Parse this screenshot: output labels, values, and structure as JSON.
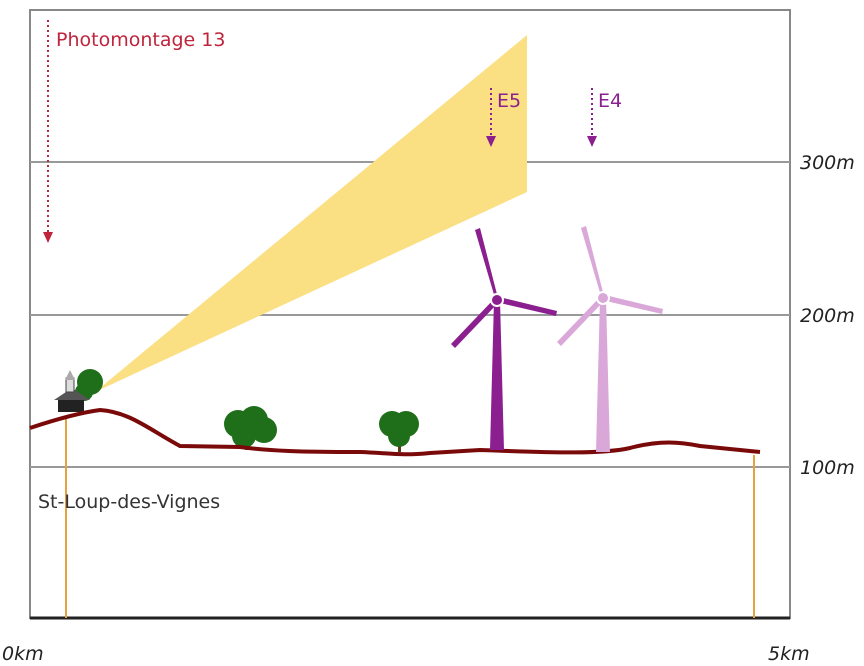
{
  "annotations": {
    "photomontage": "Photomontage 13",
    "turbines": [
      "E5",
      "E4"
    ],
    "village": "St-Loup-des-Vignes"
  },
  "y_axis": {
    "labels": [
      "300m",
      "200m",
      "100m"
    ]
  },
  "x_axis": {
    "labels": [
      "0km",
      "5km"
    ]
  }
}
